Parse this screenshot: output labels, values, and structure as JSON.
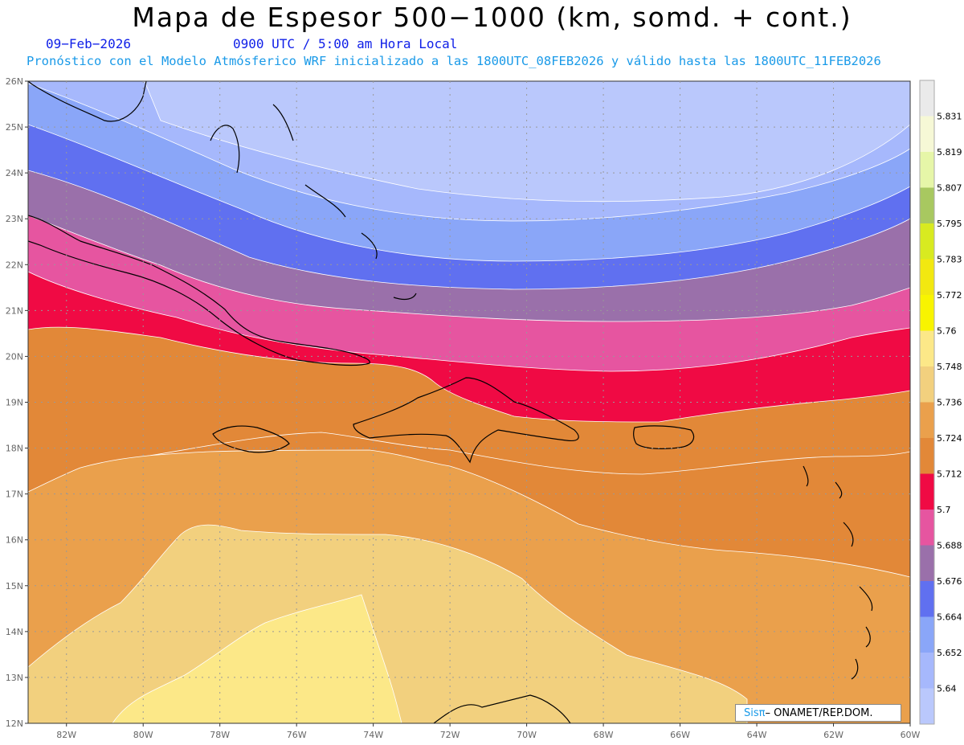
{
  "header": {
    "title": "Mapa de Espesor 500−1000 (km, somd. + cont.)",
    "date": "09−Feb−2026",
    "time": "0900 UTC / 5:00 am Hora Local",
    "info": "Pronóstico con el Modelo Atmósferico WRF inicializado a las 1800UTC_08FEB2026 y válido hasta las  1800UTC_11FEB2026"
  },
  "map": {
    "lat_labels": [
      "26N",
      "25N",
      "24N",
      "23N",
      "22N",
      "21N",
      "20N",
      "19N",
      "18N",
      "17N",
      "16N",
      "15N",
      "14N",
      "13N",
      "12N"
    ],
    "lon_labels": [
      "82W",
      "80W",
      "78W",
      "76W",
      "74W",
      "72W",
      "70W",
      "68W",
      "66W",
      "64W",
      "62W",
      "60W"
    ],
    "lat_range": [
      12,
      26
    ],
    "lon_range": [
      -83,
      -60
    ],
    "grid": true
  },
  "colorbar": {
    "labels": [
      "5.831",
      "5.819",
      "5.807",
      "5.795",
      "5.783",
      "5.772",
      "5.76",
      "5.748",
      "5.736",
      "5.724",
      "5.712",
      "5.7",
      "5.688",
      "5.676",
      "5.664",
      "5.652",
      "5.64"
    ],
    "colors": [
      "#eaeaea",
      "#f6f8d6",
      "#e6f6a8",
      "#a8c860",
      "#d8ea20",
      "#f2e810",
      "#f8f400",
      "#fce888",
      "#f2d07e",
      "#eaa04c",
      "#e28838",
      "#f00a44",
      "#e655a0",
      "#9a70aa",
      "#6070f0",
      "#8aa6f8",
      "#a6b8fc",
      "#bac8fc"
    ]
  },
  "credit": {
    "sis": "Sisπ",
    "text": "– ONAMET/REP.DOM."
  }
}
